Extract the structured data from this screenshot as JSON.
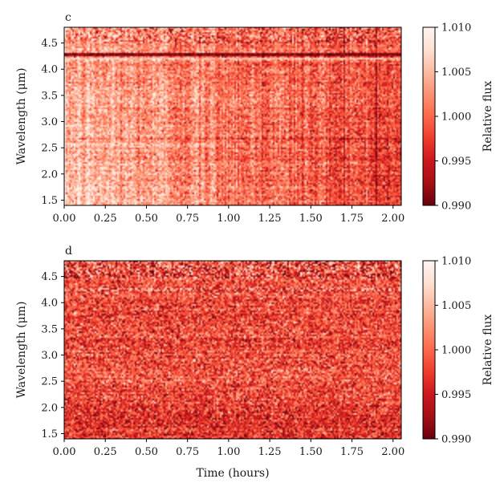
{
  "figure": {
    "xlabel": "Time (hours)"
  },
  "chart_data": [
    {
      "panel_label": "c",
      "type": "heatmap",
      "xlabel": "",
      "ylabel": "Wavelength (μm)",
      "colorbar_label": "Relative flux",
      "xlim": [
        0.0,
        2.05
      ],
      "ylim": [
        1.4,
        4.8
      ],
      "clim": [
        0.99,
        1.01
      ],
      "xticks": [
        0.0,
        0.25,
        0.5,
        0.75,
        1.0,
        1.25,
        1.5,
        1.75,
        2.0
      ],
      "xtick_labels": [
        "0.00",
        "0.25",
        "0.50",
        "0.75",
        "1.00",
        "1.25",
        "1.50",
        "1.75",
        "2.00"
      ],
      "yticks": [
        1.5,
        2.0,
        2.5,
        3.0,
        3.5,
        4.0,
        4.5
      ],
      "ytick_labels": [
        "1.5",
        "2.0",
        "2.5",
        "3.0",
        "3.5",
        "4.0",
        "4.5"
      ],
      "cbar_ticks": [
        0.99,
        0.995,
        1.0,
        1.005,
        1.01
      ],
      "cbar_tick_labels": [
        "0.990",
        "0.995",
        "1.000",
        "1.005",
        "1.010"
      ],
      "colormap": "Reds_r",
      "colormap_stops": [
        "#67000d",
        "#a50f15",
        "#cb181d",
        "#ef3b2c",
        "#fb6a4a",
        "#fc9272",
        "#fcbba1",
        "#fee0d2",
        "#fff5f0"
      ],
      "features": [
        {
          "kind": "time_trend",
          "description": "flux decreases from ~1.005 at start to ~0.995 at end"
        },
        {
          "kind": "line_feature",
          "wavelength": 4.27,
          "value": 0.991
        },
        {
          "kind": "line_feature",
          "wavelength": 4.2,
          "value": 1.007
        },
        {
          "kind": "line_feature",
          "wavelength": 2.68,
          "value": 0.994
        }
      ]
    },
    {
      "panel_label": "d",
      "type": "heatmap",
      "xlabel": "Time (hours)",
      "ylabel": "Wavelength (μm)",
      "colorbar_label": "Relative flux",
      "xlim": [
        0.0,
        2.05
      ],
      "ylim": [
        1.4,
        4.8
      ],
      "clim": [
        0.99,
        1.01
      ],
      "xticks": [
        0.0,
        0.25,
        0.5,
        0.75,
        1.0,
        1.25,
        1.5,
        1.75,
        2.0
      ],
      "xtick_labels": [
        "0.00",
        "0.25",
        "0.50",
        "0.75",
        "1.00",
        "1.25",
        "1.50",
        "1.75",
        "2.00"
      ],
      "yticks": [
        1.5,
        2.0,
        2.5,
        3.0,
        3.5,
        4.0,
        4.5
      ],
      "ytick_labels": [
        "1.5",
        "2.0",
        "2.5",
        "3.0",
        "3.5",
        "4.0",
        "4.5"
      ],
      "cbar_ticks": [
        0.99,
        0.995,
        1.0,
        1.005,
        1.01
      ],
      "cbar_tick_labels": [
        "0.990",
        "0.995",
        "1.000",
        "1.005",
        "1.010"
      ],
      "colormap": "Reds_r",
      "colormap_stops": [
        "#67000d",
        "#a50f15",
        "#cb181d",
        "#ef3b2c",
        "#fb6a4a",
        "#fc9272",
        "#fcbba1",
        "#fee0d2",
        "#fff5f0"
      ],
      "features": [
        {
          "kind": "time_trend",
          "description": "detrended residuals centered near 1.000"
        },
        {
          "kind": "line_feature",
          "wavelength": 4.24,
          "value": 1.006
        }
      ]
    }
  ]
}
